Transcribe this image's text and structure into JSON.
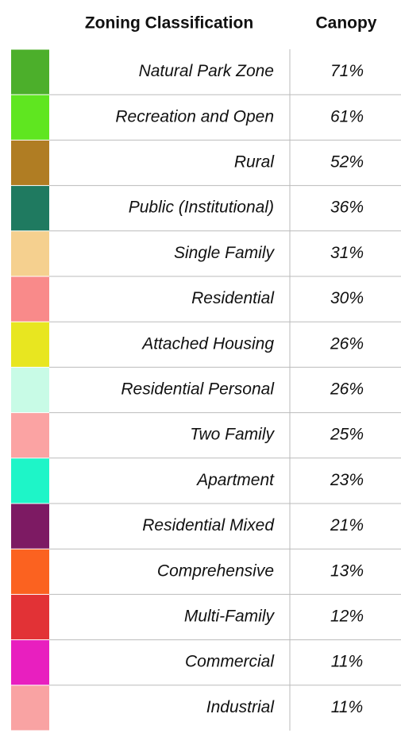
{
  "table": {
    "header": [
      "Zoning Classification",
      "Canopy"
    ],
    "rows": [
      {
        "color": "#4caf2b",
        "name": "Natural Park Zone",
        "canopy": "71%"
      },
      {
        "color": "#5fe620",
        "name": "Recreation and Open",
        "canopy": "61%"
      },
      {
        "color": "#b07d23",
        "name": "Rural",
        "canopy": "52%"
      },
      {
        "color": "#1f7a60",
        "name": "Public (Institutional)",
        "canopy": "36%"
      },
      {
        "color": "#f5d08f",
        "name": "Single Family",
        "canopy": "31%"
      },
      {
        "color": "#f98a8a",
        "name": "Residential",
        "canopy": "30%"
      },
      {
        "color": "#e8e620",
        "name": "Attached Housing",
        "canopy": "26%"
      },
      {
        "color": "#c8fbe6",
        "name": "Residential Personal",
        "canopy": "26%"
      },
      {
        "color": "#fba3a3",
        "name": "Two Family",
        "canopy": "25%"
      },
      {
        "color": "#1ef5c8",
        "name": "Apartment",
        "canopy": "23%"
      },
      {
        "color": "#7d1a63",
        "name": "Residential Mixed",
        "canopy": "21%"
      },
      {
        "color": "#fb6220",
        "name": "Comprehensive",
        "canopy": "13%"
      },
      {
        "color": "#e23236",
        "name": "Multi-Family",
        "canopy": "12%"
      },
      {
        "color": "#e81fbf",
        "name": "Commercial",
        "canopy": "11%"
      },
      {
        "color": "#f9a3a3",
        "name": "Industrial",
        "canopy": "11%"
      }
    ]
  }
}
